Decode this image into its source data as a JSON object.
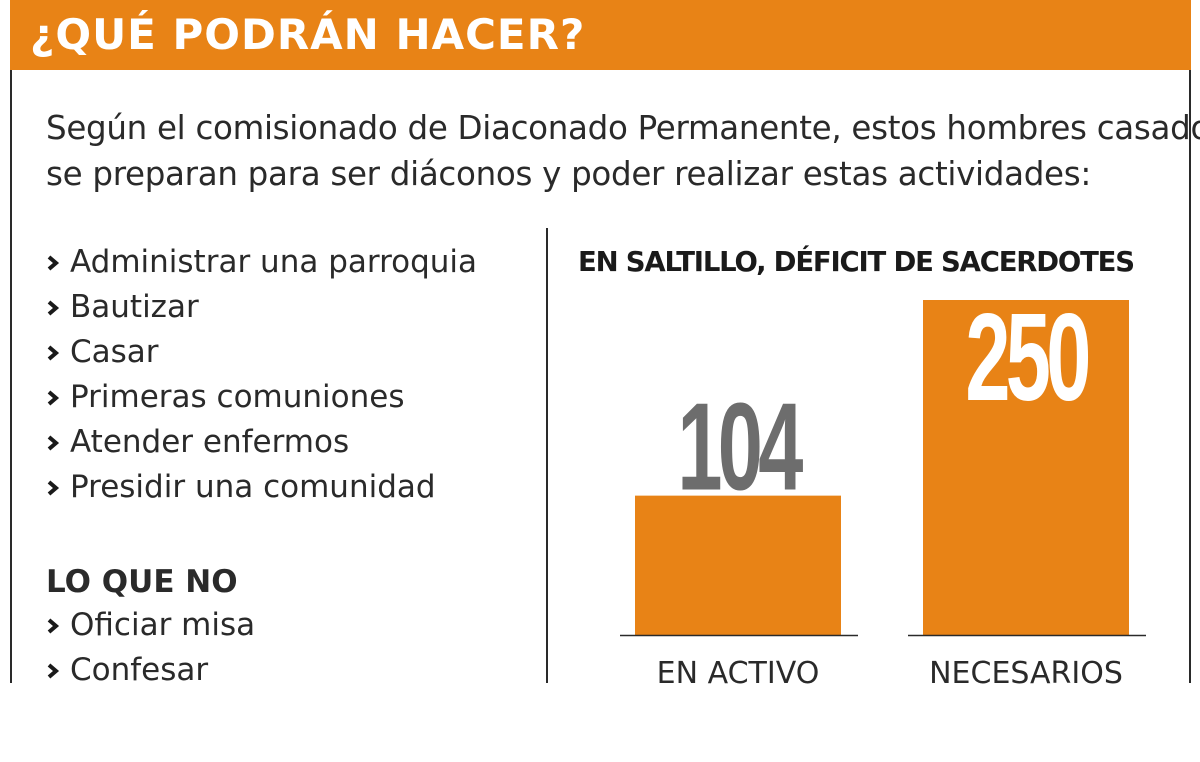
{
  "header": {
    "title": "¿QUÉ PODRÁN HACER?"
  },
  "intro": {
    "line1": "Según el comisionado de Diaconado Permanente, estos hombres casados",
    "line2": "se preparan para ser diáconos y poder realizar estas actividades:"
  },
  "can_do": [
    "Administrar una parroquia",
    "Bautizar",
    "Casar",
    "Primeras comuniones",
    "Atender enfermos",
    "Presidir una comunidad"
  ],
  "cannot": {
    "heading": "LO QUE NO",
    "items": [
      "Oficiar misa",
      "Confesar"
    ]
  },
  "colors": {
    "accent": "#e88316",
    "text": "#2a2a2a",
    "label_gray": "#6d6d6d",
    "label_white": "#ffffff"
  },
  "icons": {
    "bullet": "chevron-right-icon"
  },
  "chart_data": {
    "type": "bar",
    "title": "EN SALTILLO, DÉFICIT DE SACERDOTES",
    "categories": [
      "EN ACTIVO",
      "NECESARIOS"
    ],
    "values": [
      104,
      250
    ],
    "value_labels": [
      "104",
      "250"
    ],
    "ylim": [
      0,
      250
    ],
    "grid": false,
    "legend": "none"
  }
}
